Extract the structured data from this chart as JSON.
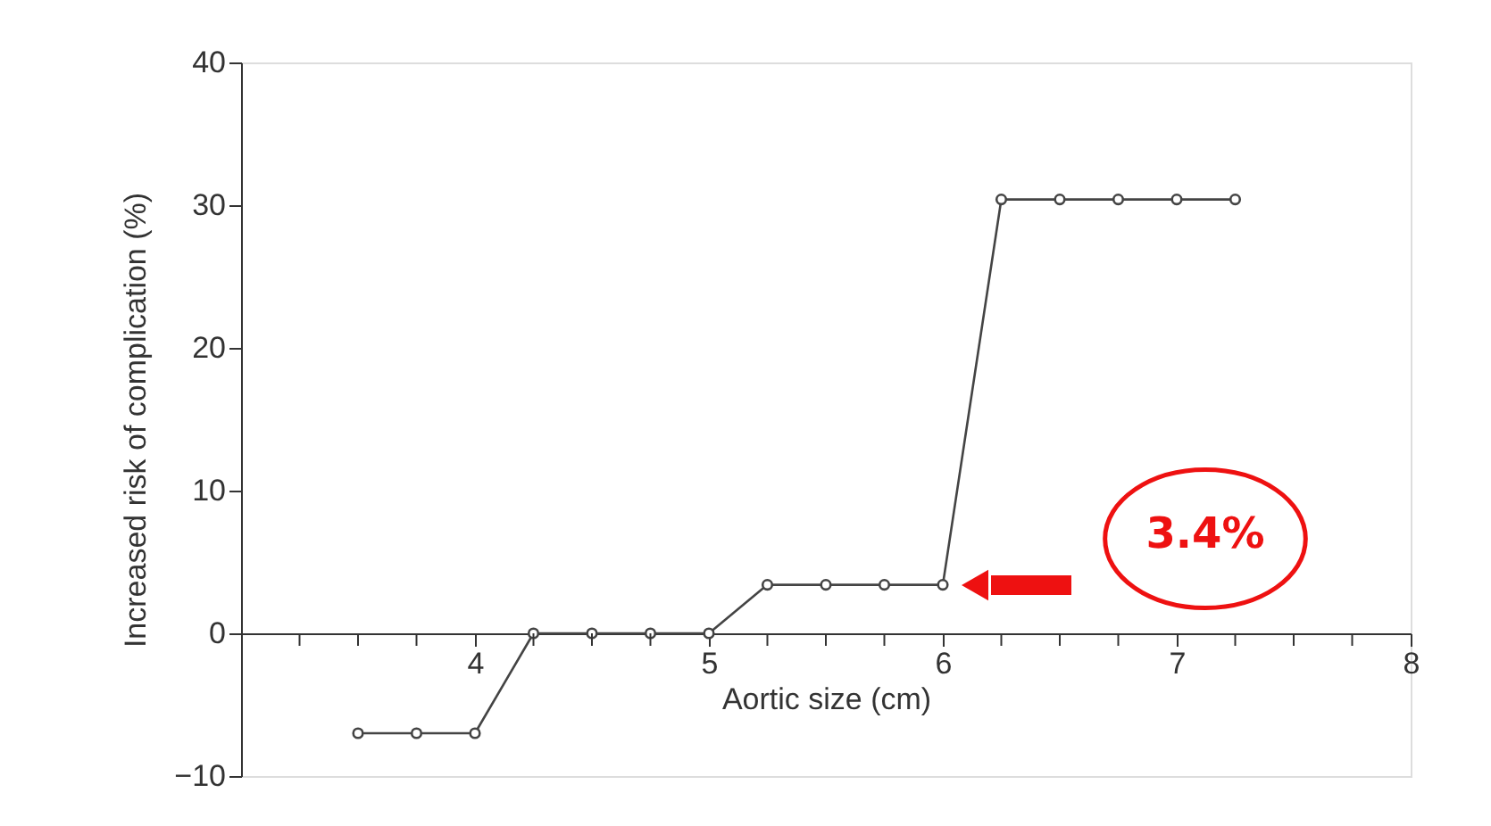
{
  "chart_data": {
    "type": "line",
    "xlabel": "Aortic size (cm)",
    "ylabel": "Increased risk of complication (%)",
    "x": [
      3.5,
      3.75,
      4.0,
      4.25,
      4.5,
      4.75,
      5.0,
      5.25,
      5.5,
      5.75,
      6.0,
      6.25,
      6.5,
      6.75,
      7.0,
      7.25
    ],
    "series": [
      {
        "color": "#444444",
        "values": [
          -7,
          -7,
          -7,
          0,
          0,
          0,
          0,
          3.4,
          3.4,
          3.4,
          3.4,
          30.4,
          30.4,
          30.4,
          30.4,
          30.4
        ]
      }
    ],
    "marker": "circle",
    "line_style": "solid",
    "grid": false,
    "xlim": [
      3,
      8
    ],
    "ylim": [
      -10,
      40
    ],
    "xticks": [
      {
        "value": 3.25,
        "label": null
      },
      {
        "value": 3.5,
        "label": null
      },
      {
        "value": 3.75,
        "label": null
      },
      4,
      {
        "value": 4.25,
        "label": null
      },
      {
        "value": 4.5,
        "label": null
      },
      {
        "value": 4.75,
        "label": null
      },
      5,
      {
        "value": 5.25,
        "label": null
      },
      {
        "value": 5.5,
        "label": null
      },
      {
        "value": 5.75,
        "label": null
      },
      6,
      {
        "value": 6.25,
        "label": null
      },
      {
        "value": 6.5,
        "label": null
      },
      {
        "value": 6.75,
        "label": null
      },
      7,
      {
        "value": 7.25,
        "label": null
      },
      {
        "value": 7.5,
        "label": null
      },
      {
        "value": 7.75,
        "label": null
      },
      8
    ],
    "yticks": [
      -10,
      0,
      10,
      20,
      30,
      40
    ],
    "annotations": [
      "3.4%"
    ]
  }
}
